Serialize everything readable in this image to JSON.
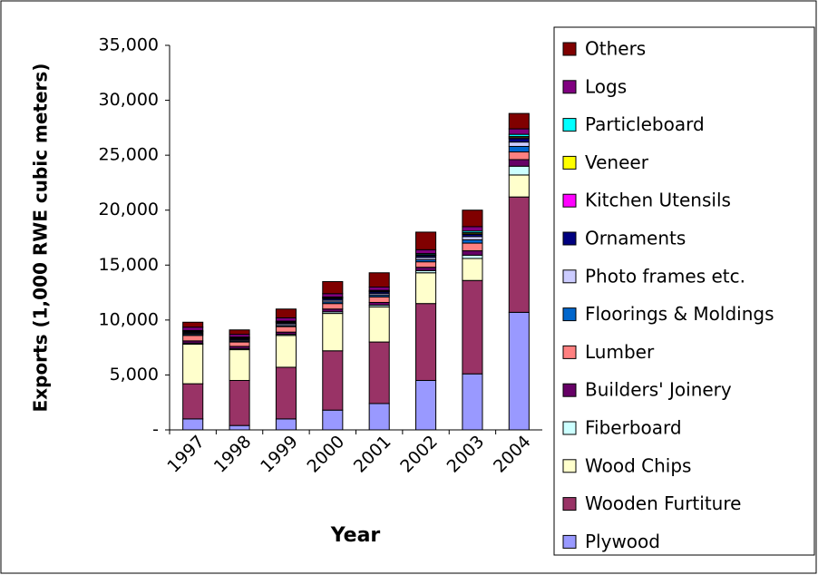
{
  "chart_data": {
    "type": "stacked_bar",
    "xlabel": "Year",
    "ylabel": "Exports (1,000 RWE cubic meters)",
    "categories": [
      "1997",
      "1998",
      "1999",
      "2000",
      "2001",
      "2002",
      "2003",
      "2004"
    ],
    "series": [
      {
        "name": "Plywood",
        "color": "#9999ff",
        "values": [
          1000,
          400,
          1000,
          1800,
          2400,
          4500,
          5100,
          10700
        ]
      },
      {
        "name": "Wooden Furtiture",
        "color": "#993366",
        "values": [
          3200,
          4100,
          4700,
          5400,
          5600,
          7000,
          8500,
          10500
        ]
      },
      {
        "name": "Wood Chips",
        "color": "#ffffcc",
        "values": [
          3600,
          2800,
          2900,
          3400,
          3200,
          2800,
          2000,
          2000
        ]
      },
      {
        "name": "Fiberboard",
        "color": "#ccffff",
        "values": [
          100,
          100,
          100,
          150,
          150,
          200,
          300,
          800
        ]
      },
      {
        "name": "Builders' Joinery",
        "color": "#660066",
        "values": [
          200,
          200,
          200,
          250,
          250,
          300,
          400,
          600
        ]
      },
      {
        "name": "Lumber",
        "color": "#ff8080",
        "values": [
          500,
          400,
          500,
          500,
          500,
          500,
          700,
          700
        ]
      },
      {
        "name": "Floorings & Moldings",
        "color": "#0066cc",
        "values": [
          100,
          100,
          100,
          150,
          150,
          200,
          300,
          500
        ]
      },
      {
        "name": "Photo frames etc.",
        "color": "#ccccff",
        "values": [
          100,
          100,
          150,
          150,
          150,
          200,
          300,
          400
        ]
      },
      {
        "name": "Ornaments",
        "color": "#000080",
        "values": [
          100,
          100,
          100,
          150,
          150,
          150,
          200,
          300
        ]
      },
      {
        "name": "Kitchen Utensils",
        "color": "#ff00ff",
        "values": [
          50,
          50,
          50,
          50,
          50,
          50,
          50,
          100
        ]
      },
      {
        "name": "Veneer",
        "color": "#ffff00",
        "values": [
          50,
          50,
          50,
          50,
          50,
          50,
          100,
          100
        ]
      },
      {
        "name": "Particleboard",
        "color": "#00ffff",
        "values": [
          50,
          50,
          50,
          50,
          50,
          100,
          150,
          200
        ]
      },
      {
        "name": "Logs",
        "color": "#800080",
        "values": [
          300,
          250,
          300,
          300,
          300,
          350,
          400,
          500
        ]
      },
      {
        "name": "Others",
        "color": "#800000",
        "values": [
          450,
          400,
          800,
          1100,
          1300,
          1600,
          1500,
          1400
        ]
      }
    ],
    "ylim": [
      0,
      35000
    ],
    "yticks": [
      {
        "value": 0,
        "label": "-"
      },
      {
        "value": 5000,
        "label": "5,000"
      },
      {
        "value": 10000,
        "label": "10,000"
      },
      {
        "value": 15000,
        "label": "15,000"
      },
      {
        "value": 20000,
        "label": "20,000"
      },
      {
        "value": 25000,
        "label": "25,000"
      },
      {
        "value": 30000,
        "label": "30,000"
      },
      {
        "value": 35000,
        "label": "35,000"
      }
    ],
    "legend": "right"
  }
}
